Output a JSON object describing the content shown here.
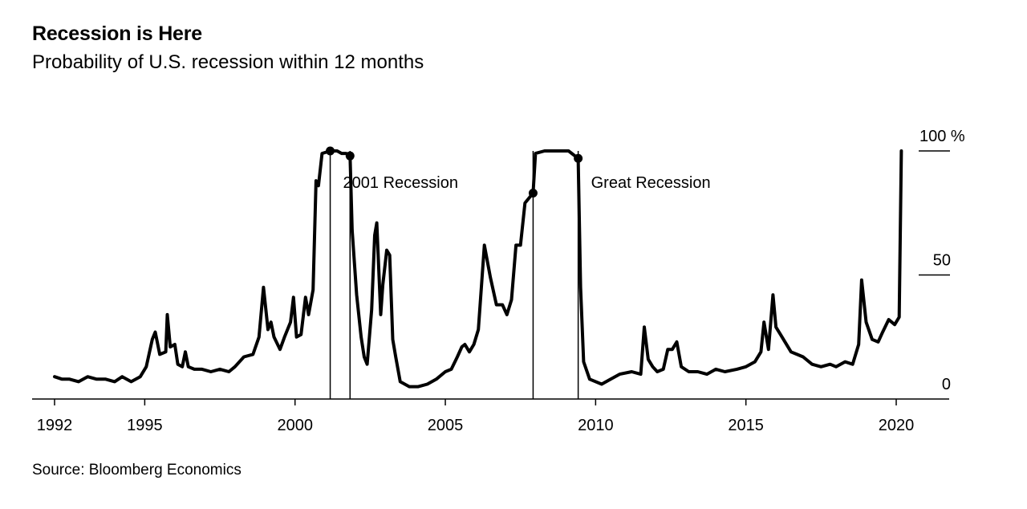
{
  "title": "Recession is Here",
  "subtitle": "Probability of U.S. recession within 12 months",
  "source": "Source: Bloomberg Economics",
  "chart_data": {
    "type": "line",
    "title": "Recession is Here",
    "subtitle": "Probability of U.S. recession within 12 months",
    "xlabel": "",
    "ylabel": "",
    "xlim": [
      1992.0,
      2021.2
    ],
    "ylim": [
      0,
      100
    ],
    "grid": false,
    "legend": "none",
    "line_color": "#000000",
    "x_ticks": [
      1992,
      1995,
      2000,
      2005,
      2010,
      2015,
      2020
    ],
    "x_tick_labels": [
      "1992",
      "1995",
      "2000",
      "2005",
      "2010",
      "2015",
      "2020"
    ],
    "y_ticks": [
      0,
      50,
      100
    ],
    "y_tick_labels": [
      "0",
      "50",
      "100 %"
    ],
    "recessions": [
      {
        "label": "2001 Recession",
        "start": 2001.17,
        "end": 2001.83,
        "start_value": 100,
        "end_value": 98
      },
      {
        "label": "Great Recession",
        "start": 2007.92,
        "end": 2009.42,
        "start_value": 83,
        "end_value": 97
      }
    ],
    "series": [
      {
        "points": [
          [
            1992.0,
            9
          ],
          [
            1992.25,
            8
          ],
          [
            1992.5,
            8
          ],
          [
            1992.8,
            7
          ],
          [
            1993.1,
            9
          ],
          [
            1993.4,
            8
          ],
          [
            1993.7,
            8
          ],
          [
            1994.0,
            7
          ],
          [
            1994.25,
            9
          ],
          [
            1994.55,
            7
          ],
          [
            1994.85,
            9
          ],
          [
            1995.05,
            13
          ],
          [
            1995.25,
            24
          ],
          [
            1995.35,
            27
          ],
          [
            1995.5,
            18
          ],
          [
            1995.7,
            19
          ],
          [
            1995.75,
            34
          ],
          [
            1995.85,
            21
          ],
          [
            1996.0,
            22
          ],
          [
            1996.1,
            14
          ],
          [
            1996.25,
            13
          ],
          [
            1996.35,
            19
          ],
          [
            1996.45,
            13
          ],
          [
            1996.65,
            12
          ],
          [
            1996.9,
            12
          ],
          [
            1997.2,
            11
          ],
          [
            1997.5,
            12
          ],
          [
            1997.8,
            11
          ],
          [
            1998.0,
            13
          ],
          [
            1998.3,
            17
          ],
          [
            1998.6,
            18
          ],
          [
            1998.8,
            25
          ],
          [
            1998.95,
            45
          ],
          [
            1999.1,
            28
          ],
          [
            1999.2,
            31
          ],
          [
            1999.3,
            25
          ],
          [
            1999.5,
            20
          ],
          [
            1999.65,
            25
          ],
          [
            1999.85,
            31
          ],
          [
            1999.95,
            41
          ],
          [
            2000.05,
            25
          ],
          [
            2000.2,
            26
          ],
          [
            2000.35,
            41
          ],
          [
            2000.45,
            34
          ],
          [
            2000.6,
            44
          ],
          [
            2000.7,
            88
          ],
          [
            2000.78,
            86
          ],
          [
            2000.9,
            99
          ],
          [
            2001.17,
            100
          ],
          [
            2001.4,
            100
          ],
          [
            2001.55,
            99
          ],
          [
            2001.7,
            99
          ],
          [
            2001.83,
            98
          ],
          [
            2001.9,
            68
          ],
          [
            2002.05,
            42
          ],
          [
            2002.2,
            25
          ],
          [
            2002.3,
            17
          ],
          [
            2002.4,
            14
          ],
          [
            2002.55,
            36
          ],
          [
            2002.65,
            66
          ],
          [
            2002.72,
            71
          ],
          [
            2002.85,
            34
          ],
          [
            2002.92,
            46
          ],
          [
            2003.05,
            60
          ],
          [
            2003.15,
            58
          ],
          [
            2003.25,
            24
          ],
          [
            2003.35,
            17
          ],
          [
            2003.5,
            7
          ],
          [
            2003.8,
            5
          ],
          [
            2004.1,
            5
          ],
          [
            2004.4,
            6
          ],
          [
            2004.7,
            8
          ],
          [
            2005.0,
            11
          ],
          [
            2005.2,
            12
          ],
          [
            2005.4,
            17
          ],
          [
            2005.55,
            21
          ],
          [
            2005.65,
            22
          ],
          [
            2005.8,
            19
          ],
          [
            2005.95,
            22
          ],
          [
            2006.1,
            28
          ],
          [
            2006.3,
            62
          ],
          [
            2006.5,
            49
          ],
          [
            2006.7,
            38
          ],
          [
            2006.9,
            38
          ],
          [
            2007.05,
            34
          ],
          [
            2007.2,
            40
          ],
          [
            2007.35,
            62
          ],
          [
            2007.5,
            62
          ],
          [
            2007.65,
            79
          ],
          [
            2007.92,
            83
          ],
          [
            2008.0,
            99
          ],
          [
            2008.3,
            100
          ],
          [
            2008.6,
            100
          ],
          [
            2008.9,
            100
          ],
          [
            2009.1,
            100
          ],
          [
            2009.42,
            97
          ],
          [
            2009.5,
            45
          ],
          [
            2009.6,
            15
          ],
          [
            2009.8,
            8
          ],
          [
            2010.2,
            6
          ],
          [
            2010.5,
            8
          ],
          [
            2010.8,
            10
          ],
          [
            2011.2,
            11
          ],
          [
            2011.5,
            10
          ],
          [
            2011.62,
            29
          ],
          [
            2011.75,
            16
          ],
          [
            2011.9,
            13
          ],
          [
            2012.05,
            11
          ],
          [
            2012.25,
            12
          ],
          [
            2012.4,
            20
          ],
          [
            2012.55,
            20
          ],
          [
            2012.7,
            23
          ],
          [
            2012.85,
            13
          ],
          [
            2013.1,
            11
          ],
          [
            2013.4,
            11
          ],
          [
            2013.7,
            10
          ],
          [
            2014.0,
            12
          ],
          [
            2014.3,
            11
          ],
          [
            2014.7,
            12
          ],
          [
            2015.0,
            13
          ],
          [
            2015.3,
            15
          ],
          [
            2015.5,
            19
          ],
          [
            2015.6,
            31
          ],
          [
            2015.75,
            20
          ],
          [
            2015.9,
            42
          ],
          [
            2016.0,
            29
          ],
          [
            2016.15,
            26
          ],
          [
            2016.3,
            23
          ],
          [
            2016.5,
            19
          ],
          [
            2016.7,
            18
          ],
          [
            2016.9,
            17
          ],
          [
            2017.2,
            14
          ],
          [
            2017.5,
            13
          ],
          [
            2017.8,
            14
          ],
          [
            2018.0,
            13
          ],
          [
            2018.3,
            15
          ],
          [
            2018.55,
            14
          ],
          [
            2018.75,
            22
          ],
          [
            2018.85,
            48
          ],
          [
            2019.0,
            31
          ],
          [
            2019.2,
            24
          ],
          [
            2019.4,
            23
          ],
          [
            2019.55,
            27
          ],
          [
            2019.75,
            32
          ],
          [
            2019.95,
            30
          ],
          [
            2020.1,
            33
          ],
          [
            2020.17,
            100
          ]
        ]
      }
    ]
  }
}
